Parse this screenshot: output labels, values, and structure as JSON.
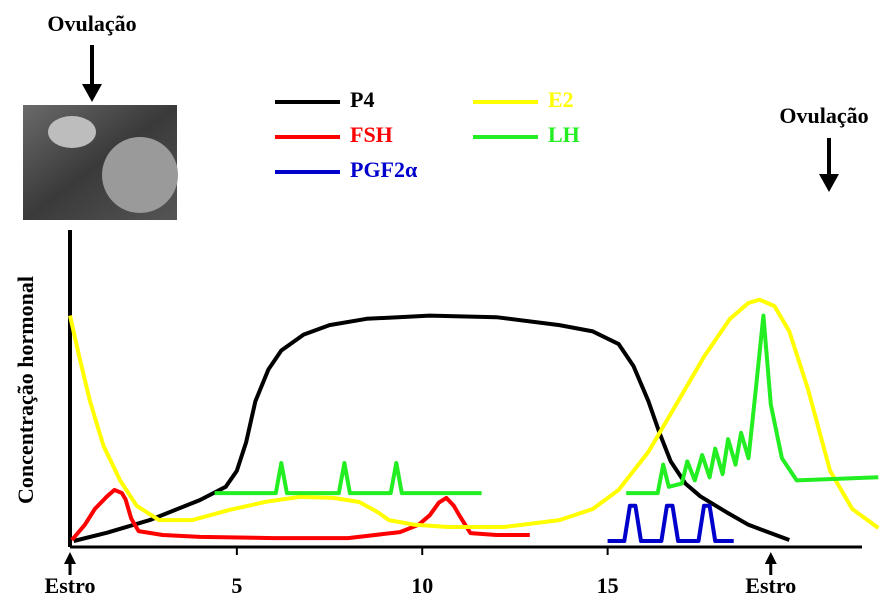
{
  "chart_data": {
    "type": "line",
    "y_label": "Concentração hormonal",
    "annotations": [
      "Ovulação",
      "Ovulação"
    ],
    "xlim": [
      0.5,
      22.4
    ],
    "ylim": [
      0,
      100
    ],
    "xticks": [
      {
        "value": 0.5,
        "label": "Estro"
      },
      5,
      10,
      15,
      {
        "value": 19.4,
        "label": "Estro"
      }
    ],
    "series": [
      {
        "name": "P4",
        "color": "#000000",
        "x": [
          0.6,
          1.5,
          2.65,
          4.0,
          4.7,
          5.0,
          5.25,
          5.5,
          5.85,
          6.2,
          6.8,
          7.5,
          8.5,
          10.2,
          12.0,
          13.7,
          14.6,
          15.3,
          15.7,
          16.1,
          16.4,
          16.7,
          17.1,
          17.5,
          18.2,
          18.8,
          19.9
        ],
        "values": [
          1.9,
          4.5,
          8.5,
          14.8,
          19,
          24,
          33,
          46,
          56,
          62,
          67,
          70,
          72,
          73,
          72.5,
          70,
          68,
          64,
          57,
          46,
          36,
          27,
          20,
          16,
          11,
          7,
          2.2
        ]
      },
      {
        "name": "FSH",
        "color": "#ff0000",
        "x": [
          0.55,
          0.9,
          1.17,
          1.5,
          1.7,
          1.9,
          2.0,
          2.15,
          2.35,
          3.0,
          4.0,
          6.0,
          8.0,
          9.4,
          9.9,
          10.2,
          10.45,
          10.65,
          10.85,
          11.0,
          11.3,
          12.0,
          12.9
        ],
        "values": [
          2.2,
          7,
          12,
          16,
          18,
          17,
          15,
          9,
          5,
          3.8,
          3.2,
          2.8,
          2.8,
          4.7,
          7,
          10,
          14,
          15.5,
          13,
          10,
          4.4,
          3.8,
          3.8
        ]
      },
      {
        "name": "PGF2α",
        "color": "#0000cc",
        "x": [
          15.0,
          15.45,
          15.6,
          15.75,
          15.9,
          16.45,
          16.6,
          16.75,
          16.9,
          17.45,
          17.6,
          17.75,
          17.9,
          18.4
        ],
        "values": [
          1.9,
          1.9,
          13,
          13,
          1.9,
          1.9,
          13,
          13,
          1.9,
          1.9,
          13,
          13,
          1.9,
          1.9
        ]
      },
      {
        "name": "E2",
        "color": "#ffff00",
        "x": [
          0.5,
          0.75,
          1.04,
          1.4,
          1.85,
          2.3,
          2.9,
          3.8,
          4.8,
          5.8,
          6.7,
          7.6,
          8.3,
          8.8,
          9.1,
          9.8,
          10.7,
          12.2,
          13.7,
          14.6,
          15.3,
          16.1,
          16.9,
          17.6,
          18.3,
          18.8,
          19.1,
          19.5,
          19.9,
          20.4,
          21.0,
          21.6,
          22.3
        ],
        "values": [
          73,
          60,
          46,
          32,
          21,
          13,
          8.5,
          8.5,
          11.7,
          14.3,
          15.8,
          15.5,
          14.2,
          11,
          8.5,
          7,
          6.3,
          6.3,
          8.5,
          12,
          18,
          30,
          46,
          60,
          72,
          77,
          78,
          76,
          68,
          50,
          24,
          12,
          6
        ]
      },
      {
        "name": "LH",
        "color": "#22ee22",
        "x": [
          4.4,
          6.05,
          6.2,
          6.35,
          7.75,
          7.9,
          8.05,
          9.15,
          9.3,
          9.45,
          11.6,
          13.5,
          15.5,
          16.35,
          16.5,
          16.65,
          17.0,
          17.15,
          17.35,
          17.55,
          17.75,
          17.9,
          18.1,
          18.25,
          18.45,
          18.6,
          18.8,
          19.0,
          19.2,
          19.4,
          19.7,
          20.1,
          22.3
        ],
        "values": [
          17,
          17,
          26.5,
          17,
          17,
          26.5,
          17,
          17,
          26.5,
          17,
          17,
          null,
          17,
          17,
          26,
          19,
          20,
          27,
          21,
          29,
          22,
          31,
          23,
          34,
          26,
          36,
          28,
          50,
          73,
          45,
          28,
          21,
          22
        ]
      }
    ]
  }
}
